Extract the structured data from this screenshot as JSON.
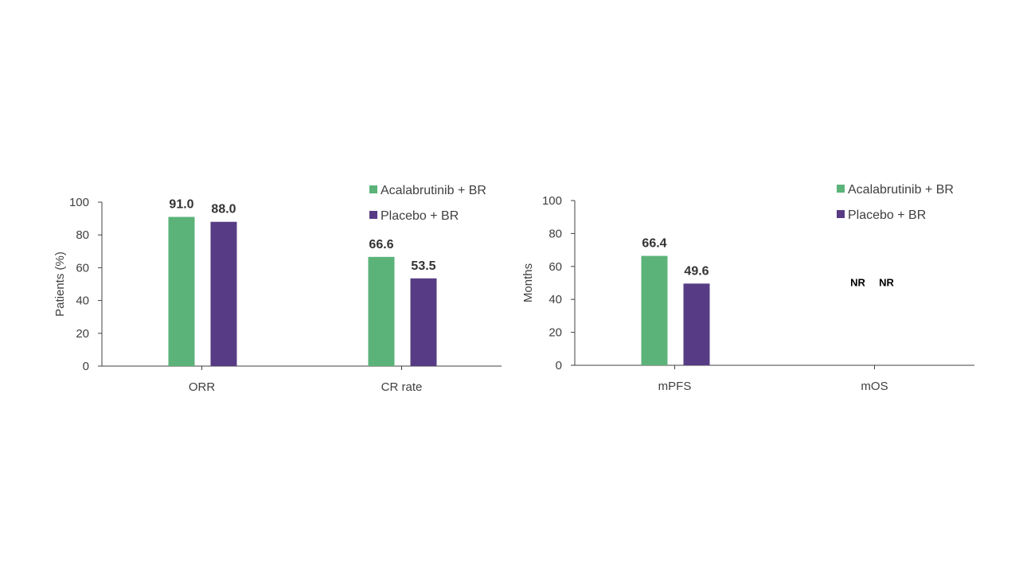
{
  "colors": {
    "acalabrutinib": "#5bb37a",
    "placebo": "#573c85",
    "axis": "#404040"
  },
  "chart_data": [
    {
      "type": "bar",
      "categories": [
        "ORR",
        "CR rate"
      ],
      "series": [
        {
          "name": "Acalabrutinib + BR",
          "values": [
            91.0,
            66.6
          ],
          "labels": [
            "91.0",
            "66.6"
          ]
        },
        {
          "name": "Placebo + BR",
          "values": [
            88.0,
            53.5
          ],
          "labels": [
            "88.0",
            "53.5"
          ]
        }
      ],
      "xlabel": "",
      "ylabel": "Patients (%)",
      "ylim": [
        0,
        100
      ],
      "yticks": [
        "0",
        "20",
        "40",
        "60",
        "80",
        "100"
      ],
      "grid": false,
      "legend": "top-right"
    },
    {
      "type": "bar",
      "categories": [
        "mPFS",
        "mOS"
      ],
      "series": [
        {
          "name": "Acalabrutinib + BR",
          "values": [
            66.4,
            null
          ],
          "labels": [
            "66.4",
            "NR"
          ]
        },
        {
          "name": "Placebo + BR",
          "values": [
            49.6,
            null
          ],
          "labels": [
            "49.6",
            "NR"
          ]
        }
      ],
      "xlabel": "",
      "ylabel": "Months",
      "ylim": [
        0,
        100
      ],
      "yticks": [
        "0",
        "20",
        "40",
        "60",
        "80",
        "100"
      ],
      "grid": false,
      "legend": "top-right"
    }
  ]
}
